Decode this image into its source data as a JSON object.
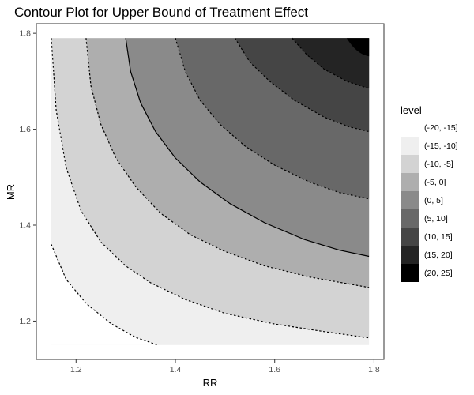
{
  "chart_data": {
    "type": "contour",
    "title": "Contour Plot for Upper Bound of Treatment Effect",
    "xlabel": "RR",
    "ylabel": "MR",
    "xlim": [
      1.12,
      1.82
    ],
    "ylim": [
      1.12,
      1.82
    ],
    "x_ticks": [
      "1.2",
      "1.4",
      "1.6",
      "1.8"
    ],
    "y_ticks": [
      "1.2",
      "1.4",
      "1.6",
      "1.8"
    ],
    "x_tick_values": [
      1.2,
      1.4,
      1.6,
      1.8
    ],
    "y_tick_values": [
      1.2,
      1.4,
      1.6,
      1.8
    ],
    "data_range": {
      "x": [
        1.15,
        1.79
      ],
      "y": [
        1.15,
        1.79
      ]
    },
    "grid": false,
    "legend": {
      "title": "level",
      "position": "right",
      "entries": [
        {
          "label": "(-20, -15]",
          "color": "#ffffff"
        },
        {
          "label": "(-15, -10]",
          "color": "#efefef"
        },
        {
          "label": "(-10, -5]",
          "color": "#d3d3d3"
        },
        {
          "label": "(-5, 0]",
          "color": "#aeaeae"
        },
        {
          "label": "(0, 5]",
          "color": "#8a8a8a"
        },
        {
          "label": "(5, 10]",
          "color": "#686868"
        },
        {
          "label": "(10, 15]",
          "color": "#454545"
        },
        {
          "label": "(15, 20]",
          "color": "#242424"
        },
        {
          "label": "(20, 25]",
          "color": "#000000"
        }
      ]
    },
    "contours": [
      {
        "level": -15,
        "style": "dashed",
        "points": [
          [
            1.15,
            1.36
          ],
          [
            1.18,
            1.287
          ],
          [
            1.22,
            1.237
          ],
          [
            1.27,
            1.195
          ],
          [
            1.32,
            1.166
          ],
          [
            1.365,
            1.15
          ]
        ]
      },
      {
        "level": -10,
        "style": "dashed",
        "points": [
          [
            1.15,
            1.79
          ],
          [
            1.16,
            1.64
          ],
          [
            1.18,
            1.52
          ],
          [
            1.21,
            1.43
          ],
          [
            1.25,
            1.365
          ],
          [
            1.3,
            1.315
          ],
          [
            1.35,
            1.28
          ],
          [
            1.42,
            1.245
          ],
          [
            1.5,
            1.216
          ],
          [
            1.6,
            1.194
          ],
          [
            1.7,
            1.178
          ],
          [
            1.79,
            1.165
          ]
        ]
      },
      {
        "level": -5,
        "style": "dashed",
        "points": [
          [
            1.22,
            1.79
          ],
          [
            1.23,
            1.69
          ],
          [
            1.25,
            1.61
          ],
          [
            1.28,
            1.54
          ],
          [
            1.32,
            1.48
          ],
          [
            1.37,
            1.425
          ],
          [
            1.43,
            1.38
          ],
          [
            1.5,
            1.345
          ],
          [
            1.58,
            1.315
          ],
          [
            1.67,
            1.292
          ],
          [
            1.79,
            1.27
          ]
        ]
      },
      {
        "level": 0,
        "style": "solid",
        "points": [
          [
            1.3,
            1.79
          ],
          [
            1.31,
            1.72
          ],
          [
            1.33,
            1.655
          ],
          [
            1.36,
            1.595
          ],
          [
            1.4,
            1.54
          ],
          [
            1.45,
            1.49
          ],
          [
            1.51,
            1.445
          ],
          [
            1.58,
            1.405
          ],
          [
            1.66,
            1.37
          ],
          [
            1.73,
            1.348
          ],
          [
            1.79,
            1.335
          ]
        ]
      },
      {
        "level": 5,
        "style": "dashed",
        "points": [
          [
            1.4,
            1.79
          ],
          [
            1.42,
            1.72
          ],
          [
            1.45,
            1.66
          ],
          [
            1.49,
            1.61
          ],
          [
            1.54,
            1.565
          ],
          [
            1.6,
            1.525
          ],
          [
            1.67,
            1.49
          ],
          [
            1.73,
            1.468
          ],
          [
            1.79,
            1.455
          ]
        ]
      },
      {
        "level": 10,
        "style": "dashed",
        "points": [
          [
            1.52,
            1.79
          ],
          [
            1.55,
            1.74
          ],
          [
            1.59,
            1.7
          ],
          [
            1.64,
            1.66
          ],
          [
            1.7,
            1.625
          ],
          [
            1.75,
            1.605
          ],
          [
            1.79,
            1.595
          ]
        ]
      },
      {
        "level": 15,
        "style": "dashed",
        "points": [
          [
            1.635,
            1.79
          ],
          [
            1.665,
            1.755
          ],
          [
            1.7,
            1.725
          ],
          [
            1.745,
            1.7
          ],
          [
            1.79,
            1.685
          ]
        ]
      }
    ]
  }
}
